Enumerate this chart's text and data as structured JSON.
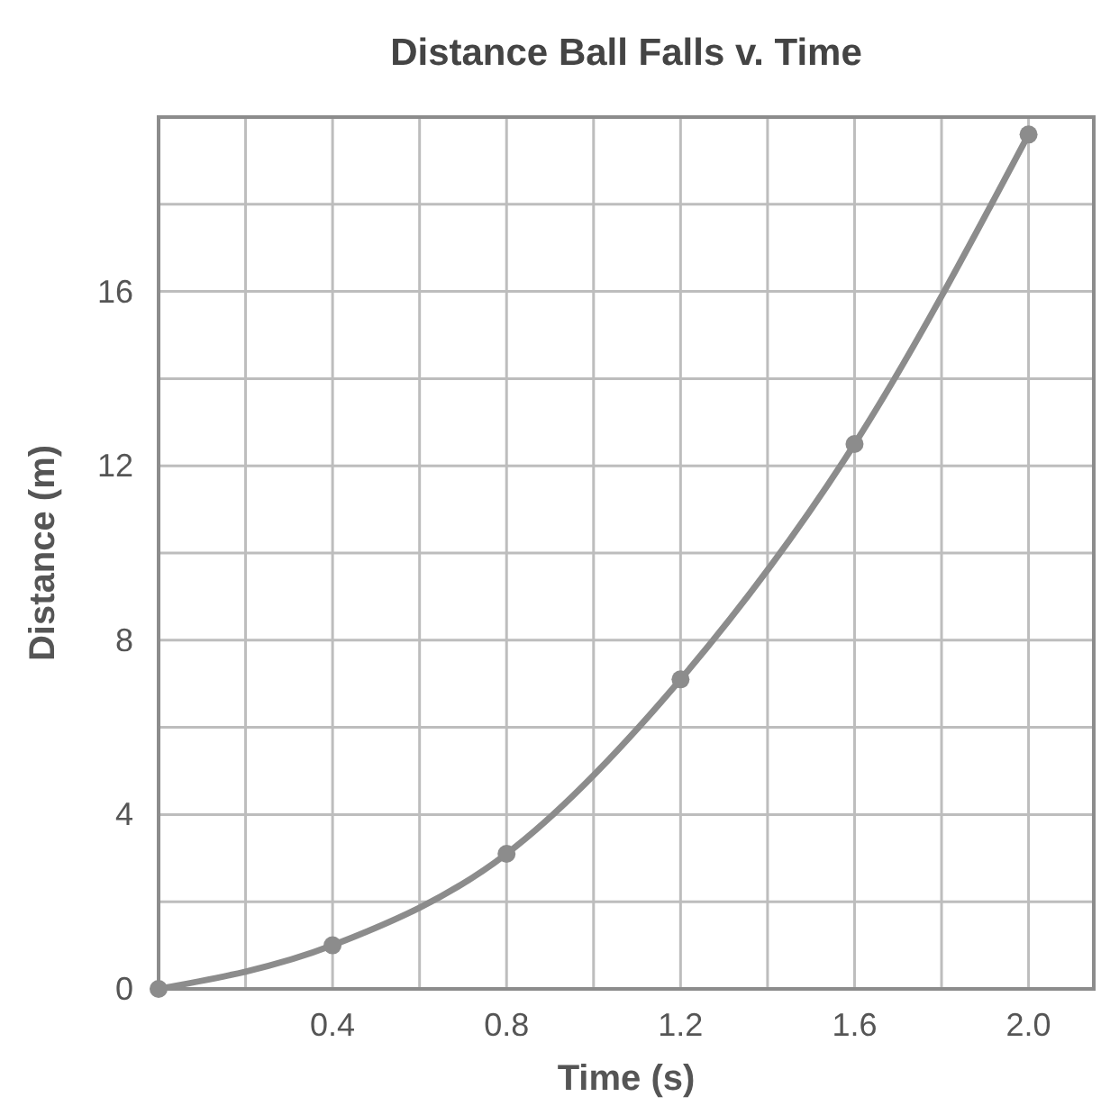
{
  "chart_data": {
    "type": "line",
    "title": "Distance Ball Falls v. Time",
    "xlabel": "Time (s)",
    "ylabel": "Distance (m)",
    "x": [
      0,
      0.4,
      0.8,
      1.2,
      1.6,
      2.0
    ],
    "series": [
      {
        "color": "#8c8c8c",
        "values": [
          0,
          1.0,
          3.1,
          7.1,
          12.5,
          19.6
        ]
      }
    ],
    "xlim": [
      0,
      2.15
    ],
    "ylim": [
      0,
      20
    ],
    "xticks": [
      {
        "value": 0.2,
        "label": null
      },
      0.4,
      {
        "value": 0.6,
        "label": null
      },
      0.8,
      {
        "value": 1.0,
        "label": null
      },
      1.2,
      {
        "value": 1.4,
        "label": null
      },
      1.6,
      {
        "value": 1.8,
        "label": null
      },
      {
        "value": 2.0,
        "label": "2.0"
      }
    ],
    "yticks": [
      0,
      {
        "value": 2,
        "label": null
      },
      4,
      {
        "value": 6,
        "label": null
      },
      8,
      {
        "value": 10,
        "label": null
      },
      12,
      {
        "value": 14,
        "label": null
      },
      16,
      {
        "value": 18,
        "label": null
      }
    ],
    "grid": true,
    "marker": "circle",
    "line_style": "solid"
  }
}
